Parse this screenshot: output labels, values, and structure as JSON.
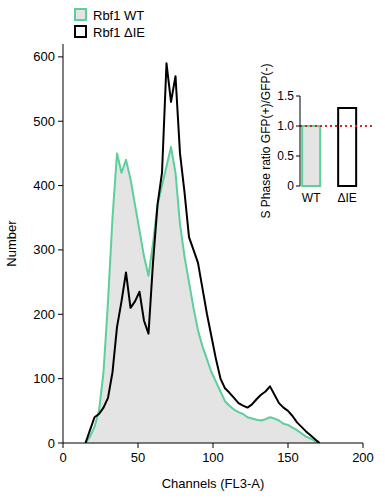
{
  "chart_data": [
    {
      "type": "line",
      "xlabel": "Channels (FL3-A)",
      "ylabel": "Number",
      "x": [
        15,
        18,
        21,
        24,
        27,
        30,
        33,
        36,
        39,
        42,
        45,
        48,
        51,
        54,
        57,
        60,
        63,
        66,
        69,
        72,
        75,
        78,
        81,
        84,
        87,
        90,
        93,
        96,
        99,
        102,
        105,
        108,
        111,
        114,
        117,
        120,
        123,
        126,
        129,
        132,
        135,
        138,
        141,
        144,
        147,
        150,
        153,
        156,
        159,
        162,
        165,
        168,
        171
      ],
      "series": [
        {
          "name": "Rbf1 WT",
          "color": "#5dcf9b",
          "type": "area",
          "values": [
            0,
            10,
            25,
            50,
            110,
            220,
            350,
            450,
            420,
            440,
            410,
            370,
            330,
            290,
            260,
            310,
            370,
            400,
            430,
            460,
            420,
            340,
            290,
            250,
            210,
            175,
            150,
            130,
            110,
            95,
            80,
            65,
            58,
            52,
            48,
            45,
            40,
            38,
            36,
            35,
            37,
            40,
            38,
            35,
            30,
            28,
            24,
            20,
            15,
            10,
            7,
            3,
            0
          ]
        },
        {
          "name": "Rbf1 ΔIE",
          "color": "#000000",
          "type": "line",
          "values": [
            0,
            20,
            40,
            45,
            55,
            70,
            110,
            180,
            220,
            265,
            210,
            220,
            235,
            190,
            170,
            280,
            370,
            420,
            590,
            530,
            570,
            450,
            390,
            320,
            300,
            280,
            240,
            200,
            165,
            130,
            100,
            85,
            78,
            70,
            62,
            58,
            55,
            60,
            68,
            75,
            80,
            88,
            75,
            62,
            55,
            50,
            42,
            32,
            25,
            18,
            12,
            6,
            0
          ]
        }
      ],
      "xlim": [
        0,
        200
      ],
      "ylim": [
        0,
        620
      ],
      "xticks": [
        0,
        50,
        100,
        150,
        200
      ],
      "yticks": [
        0,
        100,
        200,
        300,
        400,
        500,
        600
      ],
      "legend": "upper left"
    },
    {
      "type": "bar",
      "ylabel": "S Phase ratio GFP(+)/GFP(-)",
      "categories": [
        "WT",
        "ΔIE"
      ],
      "values": [
        1,
        1.3
      ],
      "colors": [
        "#5dcf9b",
        "#000000"
      ],
      "ylim": [
        0,
        1.5
      ],
      "yticks": [
        0,
        0.5,
        {
          "value": 1,
          "label": "1.0"
        },
        1.5
      ],
      "reference_line": 1
    }
  ]
}
